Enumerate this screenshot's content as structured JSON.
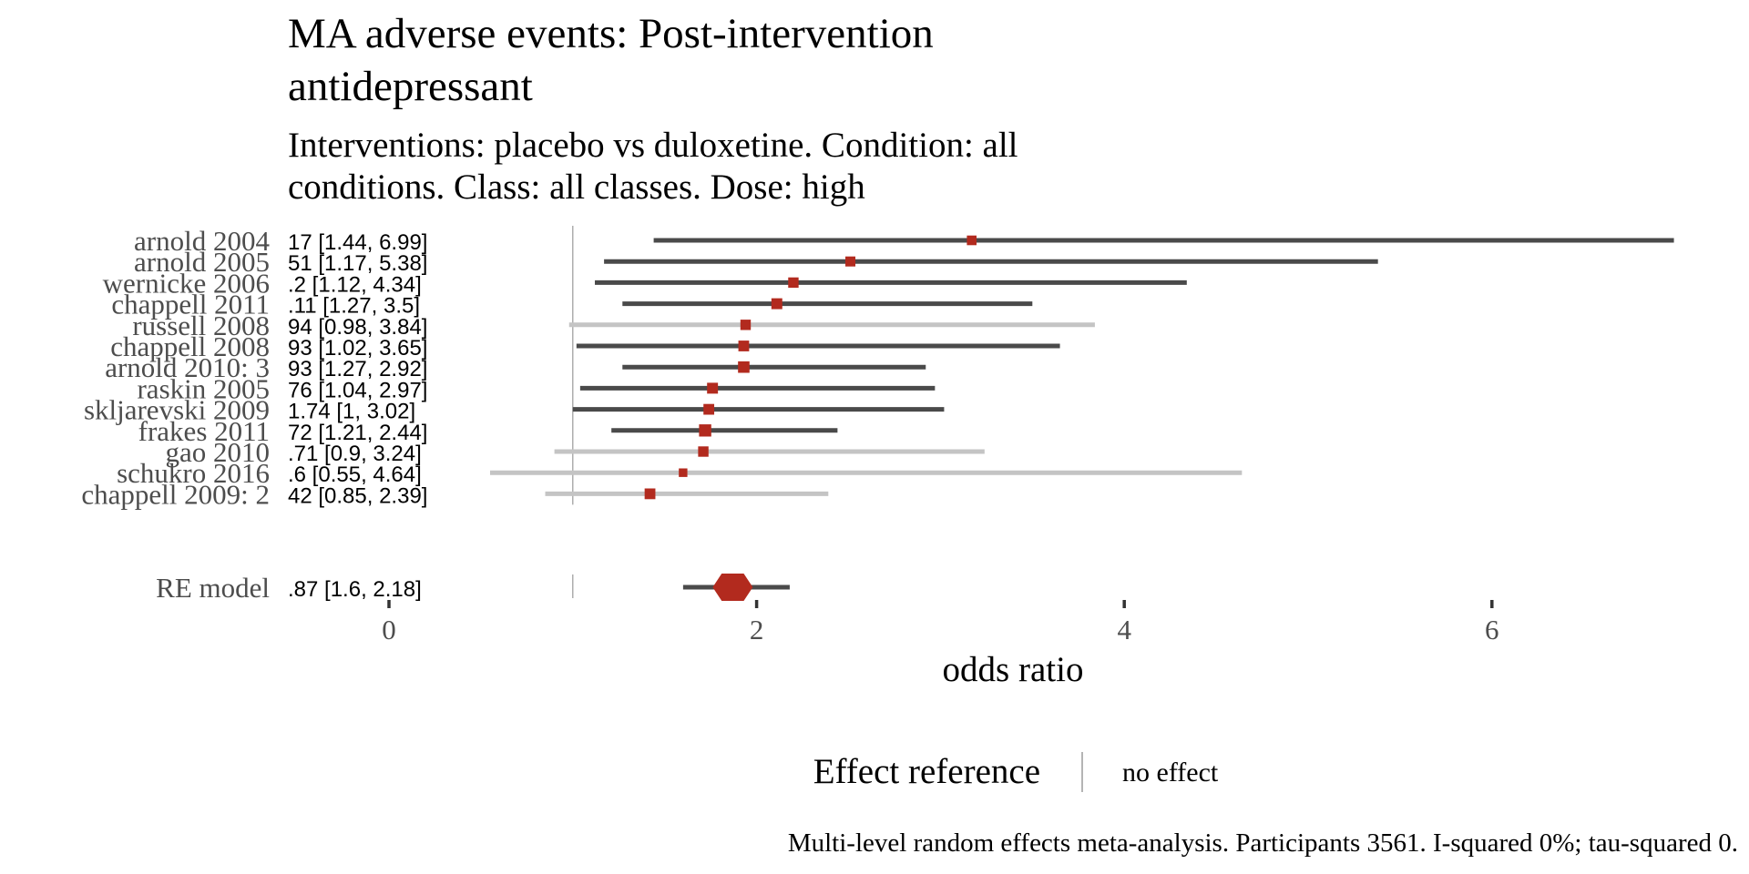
{
  "chart_data": {
    "type": "forest",
    "title": "MA adverse events: Post-intervention antidepressant",
    "title_lines": [
      "MA adverse events: Post-intervention",
      "antidepressant"
    ],
    "subtitle": "Interventions: placebo vs duloxetine. Condition: all conditions. Class: all classes. Dose: high",
    "subtitle_lines": [
      "Interventions: placebo vs duloxetine. Condition: all",
      "conditions. Class: all classes. Dose: high"
    ],
    "xlabel": "odds ratio",
    "xlim": [
      0,
      7
    ],
    "xticks": [
      0,
      2,
      4,
      6
    ],
    "tick_labels": [
      "0",
      "2",
      "4",
      "6"
    ],
    "reference_line": 1,
    "grid": false,
    "studies": [
      {
        "name": "arnold 2004",
        "label": "17 [1.44, 6.99]",
        "est": 3.17,
        "lo": 1.44,
        "hi": 6.99,
        "weight": 0.45,
        "tone": "dark"
      },
      {
        "name": "arnold 2005",
        "label": "51 [1.17, 5.38]",
        "est": 2.51,
        "lo": 1.17,
        "hi": 5.38,
        "weight": 0.5,
        "tone": "dark"
      },
      {
        "name": "wernicke 2006",
        "label": ".2 [1.12, 4.34]",
        "est": 2.2,
        "lo": 1.12,
        "hi": 4.34,
        "weight": 0.55,
        "tone": "dark"
      },
      {
        "name": "chappell 2011",
        "label": ".11 [1.27, 3.5]",
        "est": 2.11,
        "lo": 1.27,
        "hi": 3.5,
        "weight": 0.62,
        "tone": "dark"
      },
      {
        "name": "russell 2008",
        "label": "94 [0.98, 3.84]",
        "est": 1.94,
        "lo": 0.98,
        "hi": 3.84,
        "weight": 0.55,
        "tone": "light"
      },
      {
        "name": "chappell 2008",
        "label": "93 [1.02, 3.65]",
        "est": 1.93,
        "lo": 1.02,
        "hi": 3.65,
        "weight": 0.6,
        "tone": "dark"
      },
      {
        "name": "arnold 2010: 3",
        "label": "93 [1.27, 2.92]",
        "est": 1.93,
        "lo": 1.27,
        "hi": 2.92,
        "weight": 0.7,
        "tone": "dark"
      },
      {
        "name": "raskin 2005",
        "label": "76 [1.04, 2.97]",
        "est": 1.76,
        "lo": 1.04,
        "hi": 2.97,
        "weight": 0.62,
        "tone": "dark"
      },
      {
        "name": "skljarevski 2009",
        "label": "1.74 [1, 3.02]",
        "est": 1.74,
        "lo": 1.0,
        "hi": 3.02,
        "weight": 0.6,
        "tone": "dark"
      },
      {
        "name": "frakes 2011",
        "label": "72 [1.21, 2.44]",
        "est": 1.72,
        "lo": 1.21,
        "hi": 2.44,
        "weight": 0.8,
        "tone": "dark"
      },
      {
        "name": "gao 2010",
        "label": ".71 [0.9, 3.24]",
        "est": 1.71,
        "lo": 0.9,
        "hi": 3.24,
        "weight": 0.55,
        "tone": "light"
      },
      {
        "name": "schukro 2016",
        "label": ".6 [0.55, 4.64]",
        "est": 1.6,
        "lo": 0.55,
        "hi": 4.64,
        "weight": 0.3,
        "tone": "light"
      },
      {
        "name": "chappell 2009: 2",
        "label": "42 [0.85, 2.39]",
        "est": 1.42,
        "lo": 0.85,
        "hi": 2.39,
        "weight": 0.6,
        "tone": "light"
      }
    ],
    "summary": {
      "name": "RE model",
      "label": ".87 [1.6, 2.18]",
      "est": 1.87,
      "lo": 1.6,
      "hi": 2.18
    },
    "legend": {
      "title": "Effect reference",
      "label": "no effect",
      "placement": "bottom"
    },
    "caption": "Multi-level random effects meta-analysis. Participants 3561. I-squared 0%; tau-squared 0.",
    "colors": {
      "point": "#b22a1e",
      "ci_dark": "#4a4a4a",
      "ci_light": "#c4c4c4",
      "ref_line": "#9a9a9a",
      "axis_text": "#4d4d4d",
      "title": "#000000"
    }
  }
}
